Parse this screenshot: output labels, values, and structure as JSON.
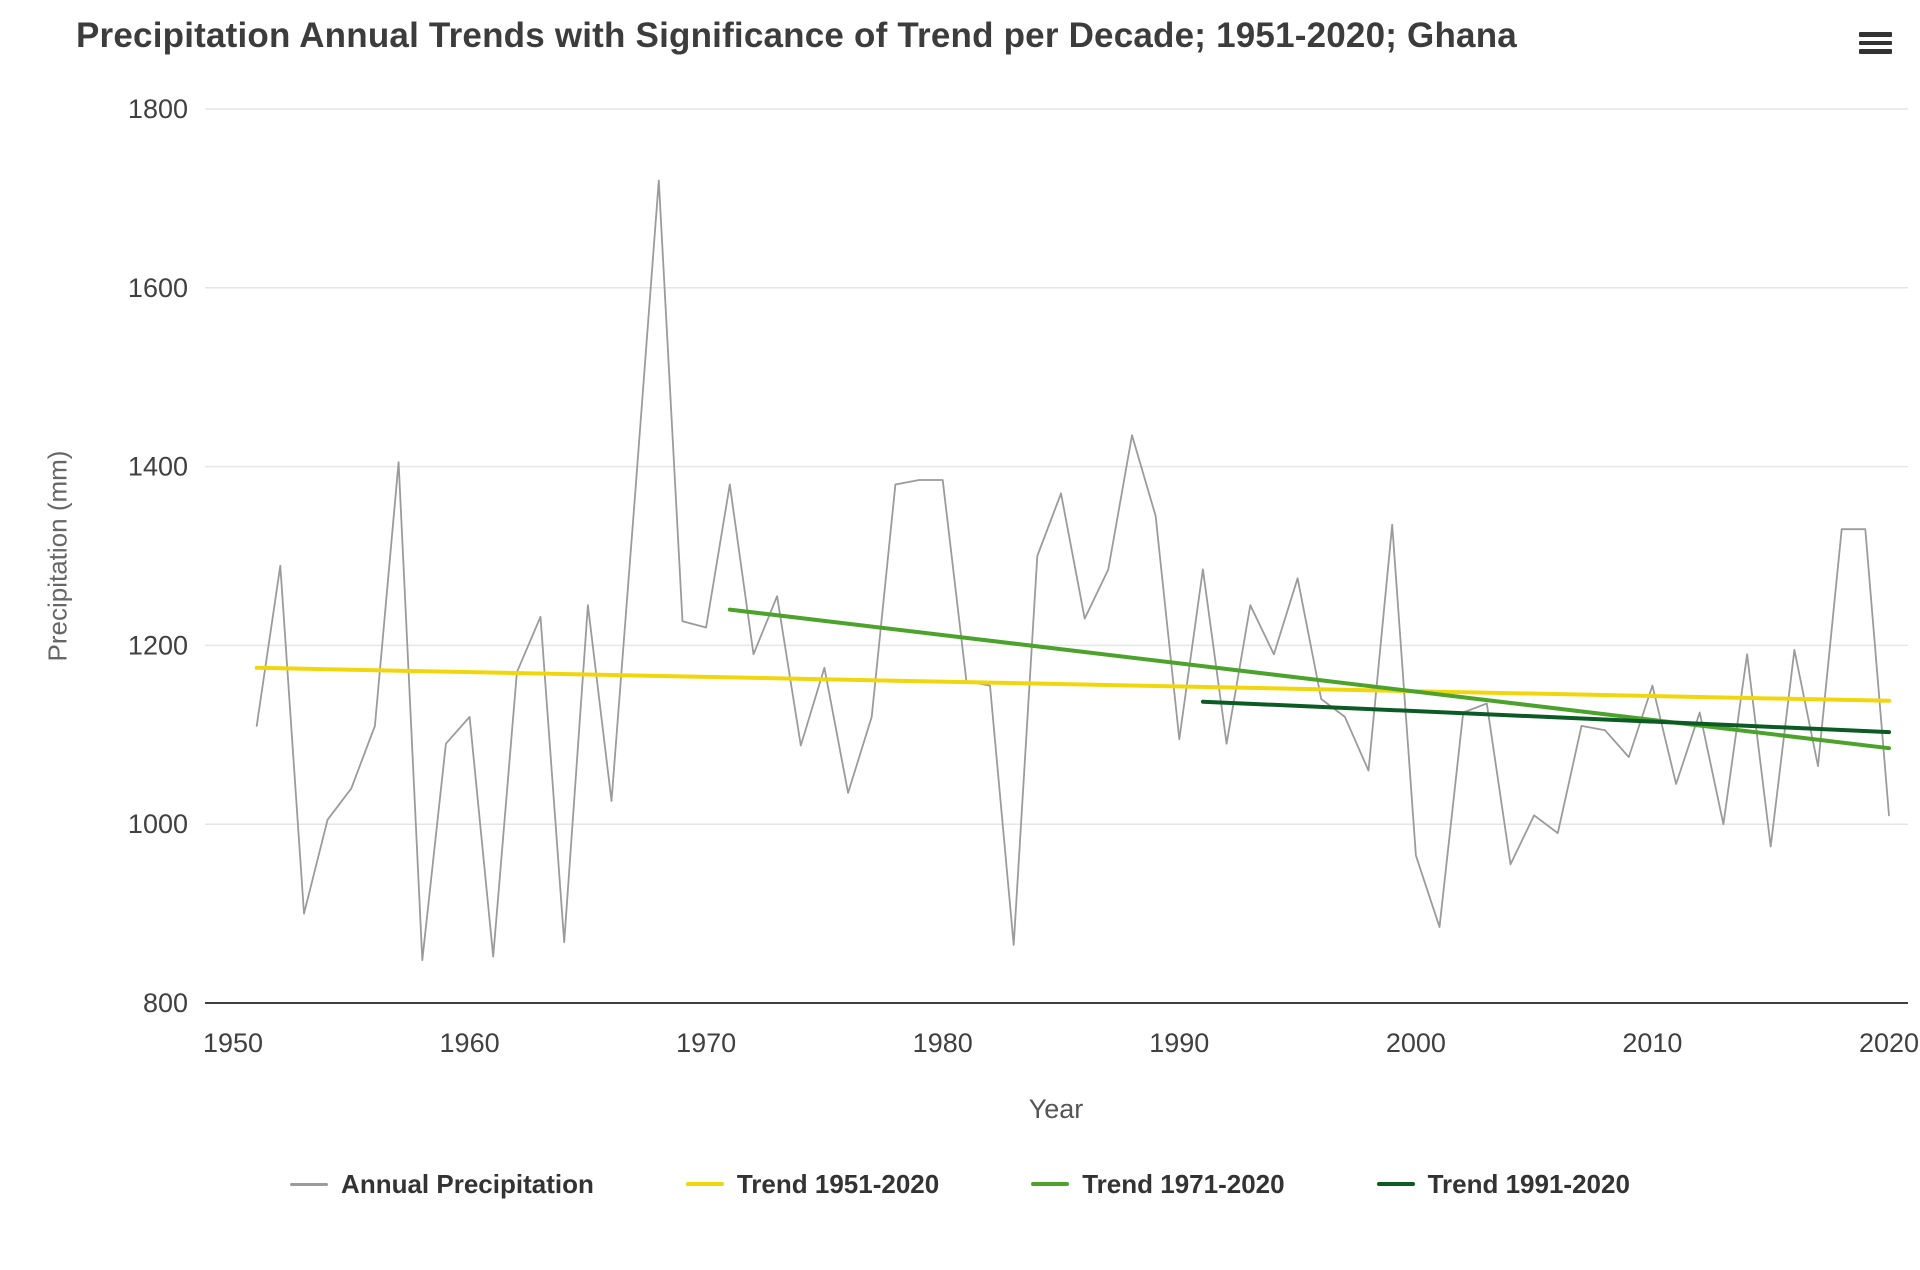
{
  "controls": {
    "context_menu_icon": "hamburger-menu-icon"
  },
  "chart_data": {
    "type": "line",
    "title": "Precipitation Annual Trends with Significance of Trend per Decade; 1951-2020; Ghana",
    "xlabel": "Year",
    "ylabel": "Precipitation (mm)",
    "xlim": [
      1950,
      2021
    ],
    "ylim": [
      800,
      1800
    ],
    "x_ticks": [
      1950,
      1960,
      1970,
      1980,
      1990,
      2000,
      2010,
      2020
    ],
    "y_ticks": [
      800,
      1000,
      1200,
      1400,
      1600,
      1800
    ],
    "grid": "horizontal-only",
    "legend_position": "bottom",
    "colors": {
      "axis_line": "#000000",
      "gridline": "#e6e6e6",
      "tick_label": "#404040",
      "axis_title": "#666666",
      "title": "#3c3c3c"
    },
    "series": [
      {
        "name": "Annual Precipitation",
        "color": "#9b9b9b",
        "width": 1.8,
        "x_start": 1951,
        "values": [
          1110,
          1289,
          900,
          1005,
          1040,
          1110,
          1405,
          848,
          1090,
          1120,
          852,
          1170,
          1232,
          868,
          1245,
          1026,
          1370,
          1720,
          1227,
          1220,
          1380,
          1190,
          1255,
          1088,
          1175,
          1035,
          1120,
          1380,
          1385,
          1385,
          1160,
          1155,
          865,
          1300,
          1370,
          1230,
          1285,
          1435,
          1345,
          1095,
          1285,
          1090,
          1245,
          1190,
          1275,
          1140,
          1120,
          1060,
          1335,
          965,
          885,
          1125,
          1135,
          955,
          1010,
          990,
          1110,
          1105,
          1075,
          1155,
          1045,
          1125,
          1000,
          1190,
          975,
          1195,
          1065,
          1330,
          1330,
          1010
        ]
      },
      {
        "name": "Trend 1951-2020",
        "color": "#f2d60c",
        "width": 4,
        "x": [
          1951,
          2020
        ],
        "values": [
          1175,
          1138
        ]
      },
      {
        "name": "Trend 1971-2020",
        "color": "#4ba32b",
        "width": 4,
        "x": [
          1971,
          2020
        ],
        "values": [
          1240,
          1085
        ]
      },
      {
        "name": "Trend 1991-2020",
        "color": "#0c5b24",
        "width": 4,
        "x": [
          1991,
          2020
        ],
        "values": [
          1137,
          1103
        ]
      }
    ]
  }
}
